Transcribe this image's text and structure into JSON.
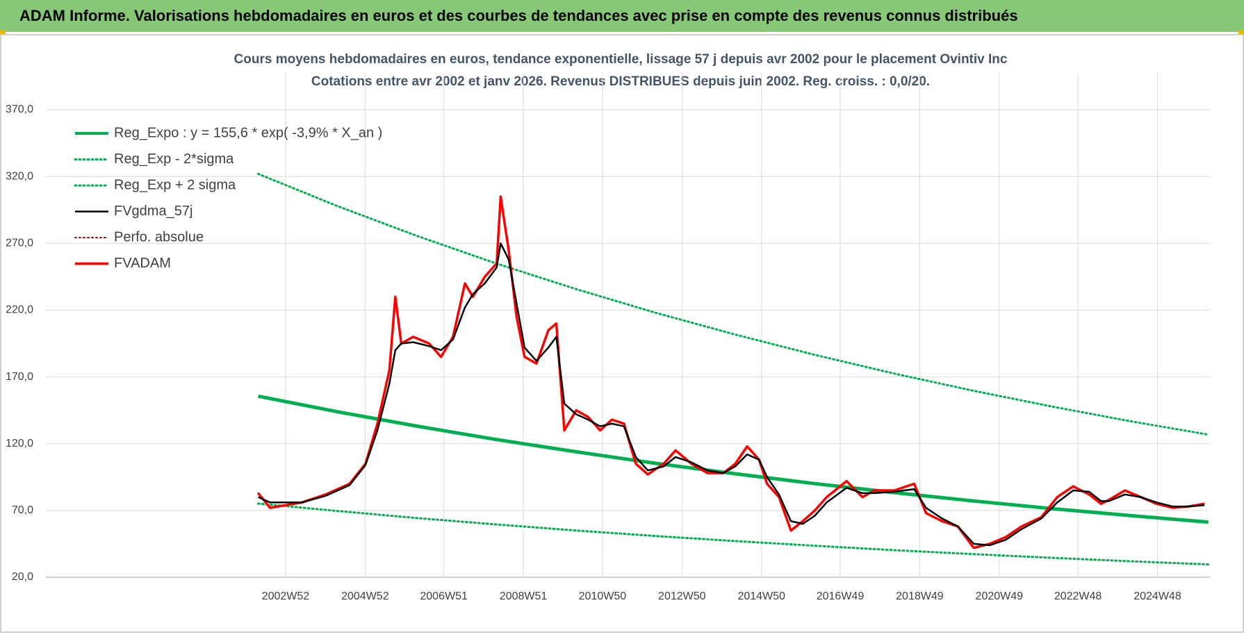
{
  "banner": "ADAM Informe. Valorisations hebdomadaires en euros et des courbes de tendances avec prise en compte des revenus connus distribués",
  "chart_data": {
    "type": "line",
    "title": "Cours moyens hebdomadaires en euros, tendance exponentielle, lissage 57 j depuis avr 2002 pour le placement Ovintiv Inc",
    "subtitle": "Cotations entre avr 2002 et janv 2026. Revenus DISTRIBUES depuis juin 2002. Reg. croiss. : 0,0/20.",
    "xlim": [
      1996.96,
      2026.24
    ],
    "xticks": [
      {
        "value": 2002.99,
        "label": "2002W52"
      },
      {
        "value": 2004.99,
        "label": "2004W52"
      },
      {
        "value": 2006.97,
        "label": "2006W51"
      },
      {
        "value": 2008.97,
        "label": "2008W51"
      },
      {
        "value": 2010.96,
        "label": "2010W50"
      },
      {
        "value": 2012.96,
        "label": "2012W50"
      },
      {
        "value": 2014.96,
        "label": "2014W50"
      },
      {
        "value": 2016.94,
        "label": "2016W49"
      },
      {
        "value": 2018.94,
        "label": "2018W49"
      },
      {
        "value": 2020.94,
        "label": "2020W49"
      },
      {
        "value": 2022.92,
        "label": "2022W48"
      },
      {
        "value": 2024.92,
        "label": "2024W48"
      }
    ],
    "ylim": [
      20,
      370
    ],
    "yticks": [
      {
        "value": 20,
        "label": "20,0"
      },
      {
        "value": 70,
        "label": "70,0"
      },
      {
        "value": 120,
        "label": "120,0"
      },
      {
        "value": 170,
        "label": "170,0"
      },
      {
        "value": 220,
        "label": "220,0"
      },
      {
        "value": 270,
        "label": "270,0"
      },
      {
        "value": 320,
        "label": "320,0"
      },
      {
        "value": 370,
        "label": "370,0"
      }
    ],
    "grid": true,
    "legend": "top-left",
    "x": [
      2002.3,
      2002.6,
      2003.4,
      2004.0,
      2004.6,
      2005.0,
      2005.3,
      2005.6,
      2005.75,
      2005.9,
      2006.2,
      2006.6,
      2006.9,
      2007.2,
      2007.5,
      2007.7,
      2008.0,
      2008.3,
      2008.4,
      2008.6,
      2008.8,
      2009.0,
      2009.3,
      2009.6,
      2009.8,
      2010.0,
      2010.3,
      2010.6,
      2010.9,
      2011.2,
      2011.5,
      2011.8,
      2012.1,
      2012.5,
      2012.8,
      2013.2,
      2013.6,
      2014.0,
      2014.3,
      2014.6,
      2014.9,
      2015.1,
      2015.4,
      2015.7,
      2016.0,
      2016.3,
      2016.6,
      2017.1,
      2017.5,
      2017.8,
      2018.3,
      2018.8,
      2019.1,
      2019.5,
      2019.9,
      2020.3,
      2020.7,
      2021.1,
      2021.5,
      2022.0,
      2022.4,
      2022.8,
      2023.2,
      2023.5,
      2023.7,
      2024.1,
      2024.5,
      2024.9,
      2025.3,
      2025.7,
      2026.1
    ],
    "series": [
      {
        "name": "Reg_Expo : y = 155,6 * exp( -3,9% *  X_an )",
        "color": "#00b050",
        "width": 5,
        "dash": "solid",
        "x": [
          2002.3,
          2004.3,
          2006.3,
          2008.3,
          2010.3,
          2012.3,
          2014.3,
          2016.3,
          2018.3,
          2020.3,
          2022.3,
          2024.3,
          2026.2
        ],
        "values": [
          155.6,
          143.9,
          133.1,
          123.1,
          113.9,
          105.3,
          97.5,
          90.1,
          83.4,
          77.1,
          71.3,
          66.0,
          61.3
        ]
      },
      {
        "name": "Reg_Exp - 2*sigma",
        "color": "#00b050",
        "width": 3,
        "dash": "dotted",
        "x": [
          2002.3,
          2004.3,
          2006.3,
          2008.3,
          2010.3,
          2012.3,
          2014.3,
          2016.3,
          2018.3,
          2020.3,
          2022.3,
          2024.3,
          2026.2
        ],
        "values": [
          75.2,
          69.6,
          64.3,
          59.5,
          55.0,
          50.9,
          47.1,
          43.6,
          40.3,
          37.3,
          34.5,
          31.9,
          29.6
        ]
      },
      {
        "name": "Reg_Exp + 2 sigma",
        "color": "#00b050",
        "width": 3,
        "dash": "dotted",
        "x": [
          2002.3,
          2004.3,
          2006.3,
          2008.3,
          2010.3,
          2012.3,
          2014.3,
          2016.3,
          2018.3,
          2020.3,
          2022.3,
          2024.3,
          2026.2
        ],
        "values": [
          322,
          297.8,
          275.5,
          254.8,
          235.7,
          218.0,
          201.7,
          186.5,
          172.5,
          159.6,
          147.6,
          136.5,
          126.8
        ]
      },
      {
        "name": "FVgdma_57j",
        "color": "#000000",
        "width": 2.5,
        "dash": "solid",
        "values": [
          80,
          76,
          76,
          81,
          89,
          104,
          130,
          165,
          190,
          195,
          196,
          193,
          190,
          198,
          222,
          232,
          240,
          252,
          270,
          258,
          225,
          192,
          182,
          192,
          200,
          150,
          142,
          138,
          133,
          135,
          133,
          110,
          100,
          103,
          110,
          106,
          100,
          98,
          103,
          112,
          108,
          95,
          82,
          62,
          60,
          66,
          76,
          87,
          83,
          83,
          84,
          86,
          72,
          64,
          58,
          45,
          44,
          48,
          56,
          64,
          76,
          85,
          84,
          77,
          77,
          82,
          80,
          76,
          73,
          73,
          74
        ]
      },
      {
        "name": "Perfo. absolue",
        "color": "#c00000",
        "width": 2,
        "dash": "dotted",
        "values": [
          83,
          72,
          76,
          82,
          90,
          105,
          135,
          175,
          230,
          195,
          200,
          195,
          185,
          200,
          240,
          230,
          245,
          255,
          305,
          265,
          215,
          185,
          180,
          205,
          210,
          130,
          145,
          140,
          130,
          138,
          135,
          105,
          97,
          105,
          115,
          105,
          98,
          98,
          105,
          118,
          108,
          90,
          80,
          55,
          62,
          70,
          80,
          92,
          80,
          85,
          85,
          90,
          68,
          62,
          58,
          42,
          45,
          50,
          58,
          65,
          80,
          88,
          82,
          75,
          78,
          85,
          80,
          75,
          72,
          73,
          75
        ]
      },
      {
        "name": "FVADAM",
        "color": "#ff0000",
        "width": 3.5,
        "dash": "solid",
        "values": [
          83,
          72,
          76,
          82,
          90,
          105,
          135,
          175,
          230,
          195,
          200,
          195,
          185,
          200,
          240,
          230,
          245,
          255,
          305,
          265,
          215,
          185,
          180,
          205,
          210,
          130,
          145,
          140,
          130,
          138,
          135,
          105,
          97,
          105,
          115,
          105,
          98,
          98,
          105,
          118,
          108,
          90,
          80,
          55,
          62,
          70,
          80,
          92,
          80,
          85,
          85,
          90,
          68,
          62,
          58,
          42,
          45,
          50,
          58,
          65,
          80,
          88,
          82,
          75,
          78,
          85,
          80,
          75,
          72,
          73,
          75
        ]
      }
    ]
  }
}
